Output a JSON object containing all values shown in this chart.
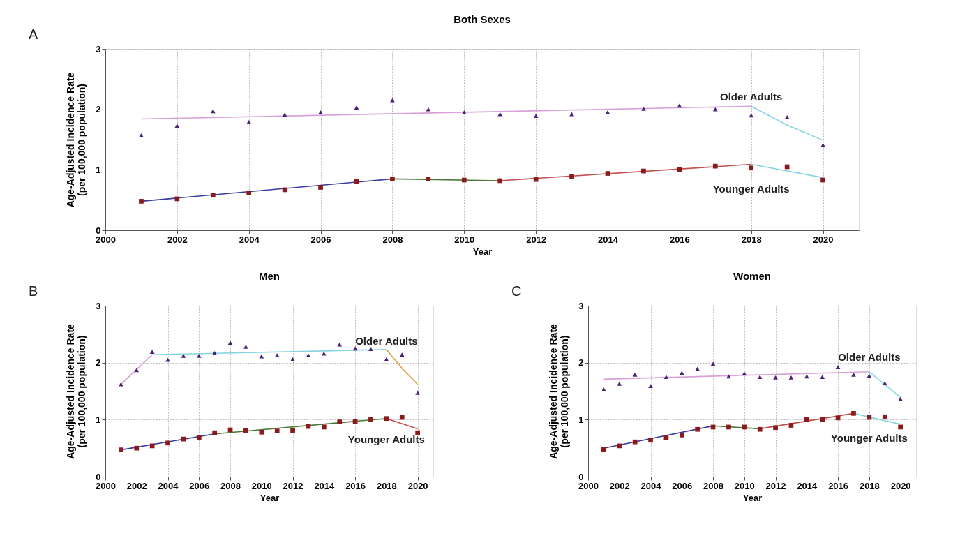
{
  "chart_data": [
    {
      "type": "scatter",
      "title": "Both Sexes",
      "xlabel": "Year",
      "ylabel": "Age-Adjusted Incidence Rate\n(per 100,000 population)",
      "annotations": [
        "A"
      ],
      "x": [
        2001,
        2002,
        2003,
        2004,
        2005,
        2006,
        2007,
        2008,
        2009,
        2010,
        2011,
        2012,
        2013,
        2014,
        2015,
        2016,
        2017,
        2018,
        2019,
        2020
      ],
      "xlim": [
        2000,
        2021
      ],
      "xticks": [
        2000,
        2002,
        2004,
        2006,
        2008,
        2010,
        2012,
        2014,
        2016,
        2018,
        2020
      ],
      "ylim": [
        0,
        3
      ],
      "yticks": [
        0,
        1,
        2,
        3
      ],
      "grid": true,
      "series": [
        {
          "type": "line",
          "color": "#d9a0d9",
          "marker": "none",
          "line_style": "solid",
          "x": [
            2001,
            2018
          ],
          "values": [
            1.84,
            2.05
          ]
        },
        {
          "type": "line",
          "color": "#86d4e0",
          "marker": "none",
          "line_style": "solid",
          "x": [
            2018,
            2019,
            2020
          ],
          "values": [
            2.05,
            1.74,
            1.49
          ]
        },
        {
          "type": "line",
          "color": "#3b3b9e",
          "marker": "none",
          "line_style": "solid",
          "x": [
            2001,
            2008
          ],
          "values": [
            0.48,
            0.85
          ]
        },
        {
          "type": "line",
          "color": "#4a7a3a",
          "marker": "none",
          "line_style": "solid",
          "x": [
            2008,
            2011
          ],
          "values": [
            0.85,
            0.82
          ]
        },
        {
          "type": "line",
          "color": "#c0504d",
          "marker": "none",
          "line_style": "solid",
          "x": [
            2011,
            2018
          ],
          "values": [
            0.82,
            1.09
          ]
        },
        {
          "type": "line",
          "color": "#86d4e0",
          "marker": "none",
          "line_style": "solid",
          "x": [
            2018,
            2019,
            2020
          ],
          "values": [
            1.09,
            0.98,
            0.87
          ]
        },
        {
          "name": "Older Adults",
          "color": "#4b1f7a",
          "marker": "triangle",
          "values": [
            1.57,
            1.73,
            1.97,
            1.79,
            1.91,
            1.95,
            2.03,
            2.15,
            2.0,
            1.95,
            1.92,
            1.89,
            1.92,
            1.95,
            2.01,
            2.06,
            2.0,
            1.9,
            1.87,
            1.41
          ]
        },
        {
          "name": "Younger Adults",
          "color": "#8b1a1a",
          "marker": "square",
          "values": [
            0.48,
            0.52,
            0.58,
            0.62,
            0.67,
            0.71,
            0.81,
            0.85,
            0.85,
            0.83,
            0.82,
            0.84,
            0.89,
            0.94,
            0.98,
            1.0,
            1.06,
            1.03,
            1.05,
            0.83
          ]
        }
      ]
    },
    {
      "type": "scatter",
      "title": "Men",
      "xlabel": "Year",
      "ylabel": "Age-Adjusted Incidence Rate\n(per 100,000 population)",
      "annotations": [
        "B"
      ],
      "x": [
        2001,
        2002,
        2003,
        2004,
        2005,
        2006,
        2007,
        2008,
        2009,
        2010,
        2011,
        2012,
        2013,
        2014,
        2015,
        2016,
        2017,
        2018,
        2019,
        2020
      ],
      "xlim": [
        2000,
        2021
      ],
      "xticks": [
        2000,
        2002,
        2004,
        2006,
        2008,
        2010,
        2012,
        2014,
        2016,
        2018,
        2020
      ],
      "ylim": [
        0,
        3
      ],
      "yticks": [
        0,
        1,
        2,
        3
      ],
      "grid": true,
      "series": [
        {
          "type": "line",
          "color": "#d9a0d9",
          "marker": "none",
          "line_style": "solid",
          "x": [
            2001,
            2003
          ],
          "values": [
            1.62,
            2.14
          ]
        },
        {
          "type": "line",
          "color": "#86d4e0",
          "marker": "none",
          "line_style": "solid",
          "x": [
            2003,
            2018
          ],
          "values": [
            2.14,
            2.23
          ]
        },
        {
          "type": "line",
          "color": "#e0a040",
          "marker": "none",
          "line_style": "solid",
          "x": [
            2018,
            2019,
            2020
          ],
          "values": [
            2.23,
            1.9,
            1.62
          ]
        },
        {
          "type": "line",
          "color": "#3b3b9e",
          "marker": "none",
          "line_style": "solid",
          "x": [
            2001,
            2007
          ],
          "values": [
            0.47,
            0.75
          ]
        },
        {
          "type": "line",
          "color": "#4a7a3a",
          "marker": "none",
          "line_style": "solid",
          "x": [
            2007,
            2018
          ],
          "values": [
            0.75,
            1.02
          ]
        },
        {
          "type": "line",
          "color": "#c0504d",
          "marker": "none",
          "line_style": "solid",
          "x": [
            2018,
            2020
          ],
          "values": [
            1.02,
            0.84
          ]
        },
        {
          "name": "Older Adults",
          "color": "#4b1f7a",
          "marker": "triangle",
          "values": [
            1.62,
            1.87,
            2.19,
            2.05,
            2.12,
            2.12,
            2.17,
            2.35,
            2.28,
            2.11,
            2.13,
            2.06,
            2.13,
            2.16,
            2.32,
            2.25,
            2.24,
            2.06,
            2.14,
            1.47
          ]
        },
        {
          "name": "Younger Adults",
          "color": "#8b1a1a",
          "marker": "square",
          "values": [
            0.47,
            0.5,
            0.54,
            0.59,
            0.66,
            0.69,
            0.77,
            0.82,
            0.81,
            0.78,
            0.8,
            0.81,
            0.88,
            0.87,
            0.96,
            0.97,
            1.0,
            1.02,
            1.04,
            0.77
          ]
        }
      ]
    },
    {
      "type": "scatter",
      "title": "Women",
      "xlabel": "Year",
      "ylabel": "Age-Adjusted Incidence Rate\n(per 100,000 population)",
      "annotations": [
        "C"
      ],
      "x": [
        2001,
        2002,
        2003,
        2004,
        2005,
        2006,
        2007,
        2008,
        2009,
        2010,
        2011,
        2012,
        2013,
        2014,
        2015,
        2016,
        2017,
        2018,
        2019,
        2020
      ],
      "xlim": [
        2000,
        2021
      ],
      "xticks": [
        2000,
        2002,
        2004,
        2006,
        2008,
        2010,
        2012,
        2014,
        2016,
        2018,
        2020
      ],
      "ylim": [
        0,
        3
      ],
      "yticks": [
        0,
        1,
        2,
        3
      ],
      "grid": true,
      "series": [
        {
          "type": "line",
          "color": "#d9a0d9",
          "marker": "none",
          "line_style": "solid",
          "x": [
            2001,
            2018
          ],
          "values": [
            1.71,
            1.84
          ]
        },
        {
          "type": "line",
          "color": "#86d4e0",
          "marker": "none",
          "line_style": "solid",
          "x": [
            2018,
            2020
          ],
          "values": [
            1.84,
            1.39
          ]
        },
        {
          "type": "line",
          "color": "#3b3b9e",
          "marker": "none",
          "line_style": "solid",
          "x": [
            2001,
            2008
          ],
          "values": [
            0.5,
            0.89
          ]
        },
        {
          "type": "line",
          "color": "#4a7a3a",
          "marker": "none",
          "line_style": "solid",
          "x": [
            2008,
            2011
          ],
          "values": [
            0.89,
            0.84
          ]
        },
        {
          "type": "line",
          "color": "#c0504d",
          "marker": "none",
          "line_style": "solid",
          "x": [
            2011,
            2017
          ],
          "values": [
            0.84,
            1.11
          ]
        },
        {
          "type": "line",
          "color": "#86d4e0",
          "marker": "none",
          "line_style": "solid",
          "x": [
            2017,
            2020
          ],
          "values": [
            1.11,
            0.92
          ]
        },
        {
          "name": "Older Adults",
          "color": "#4b1f7a",
          "marker": "triangle",
          "values": [
            1.53,
            1.63,
            1.79,
            1.59,
            1.75,
            1.82,
            1.89,
            1.98,
            1.76,
            1.81,
            1.75,
            1.74,
            1.74,
            1.76,
            1.75,
            1.92,
            1.79,
            1.77,
            1.64,
            1.36
          ]
        },
        {
          "name": "Younger Adults",
          "color": "#8b1a1a",
          "marker": "square",
          "values": [
            0.48,
            0.54,
            0.61,
            0.64,
            0.68,
            0.73,
            0.83,
            0.87,
            0.87,
            0.87,
            0.83,
            0.86,
            0.9,
            1.0,
            1.0,
            1.03,
            1.11,
            1.04,
            1.05,
            0.87
          ]
        }
      ]
    }
  ]
}
